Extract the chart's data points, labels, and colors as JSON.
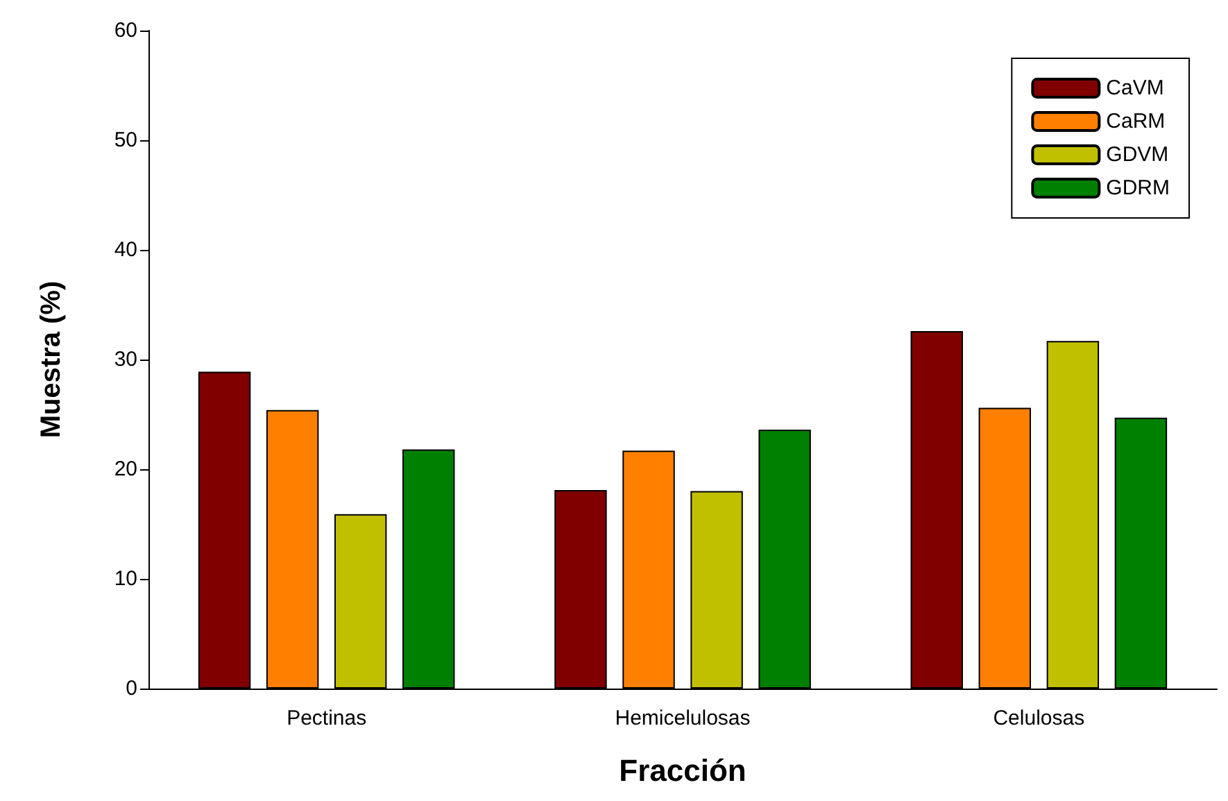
{
  "chart_data": {
    "type": "bar",
    "xlabel": "Fracción",
    "ylabel": "Muestra (%)",
    "categories": [
      "Pectinas",
      "Hemicelulosas",
      "Celulosas"
    ],
    "series": [
      {
        "name": "CaVM",
        "color": "#800000",
        "values": [
          28.9,
          18.1,
          32.6
        ]
      },
      {
        "name": "CaRM",
        "color": "#ff8000",
        "values": [
          25.4,
          21.7,
          25.6
        ]
      },
      {
        "name": "GDVM",
        "color": "#c0c000",
        "values": [
          15.9,
          18.0,
          31.7
        ]
      },
      {
        "name": "GDRM",
        "color": "#008000",
        "values": [
          21.8,
          23.6,
          24.7
        ]
      }
    ],
    "ylim": [
      0,
      60
    ],
    "yticks": [
      0,
      10,
      20,
      30,
      40,
      50,
      60
    ],
    "grid": false,
    "legend": "top right"
  }
}
